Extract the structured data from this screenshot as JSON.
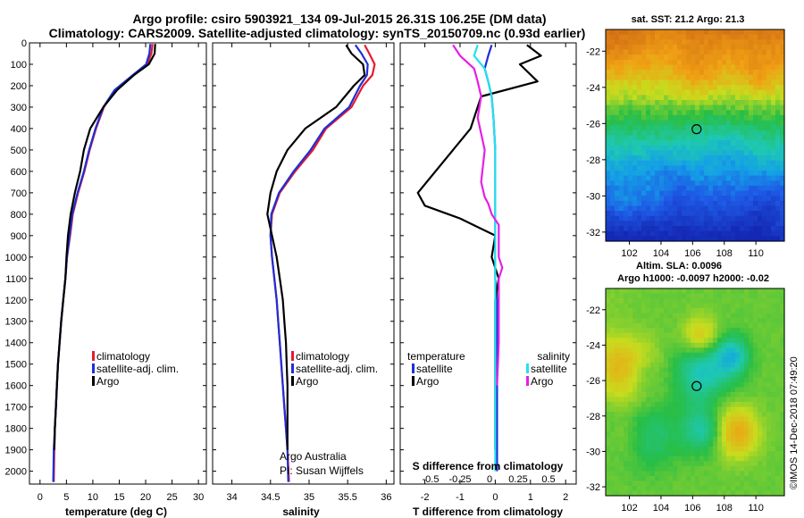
{
  "header": {
    "line1": "Argo profile: csiro 5903921_134 09-Jul-2015 26.31S 106.25E (DM data)",
    "line2": "Climatology: CARS2009. Satellite-adjusted climatology: synTS_20150709.nc (0.93d earlier)"
  },
  "colors": {
    "climatology": "#e8192c",
    "satellite": "#1f2fd6",
    "argo": "#000000",
    "sat_s": "#22e0f0",
    "argo_s": "#e61ee6"
  },
  "chart_data": [
    {
      "type": "line",
      "id": "temperature",
      "xlabel": "temperature (deg C)",
      "ylabel": "",
      "xlim": [
        -2,
        31.5
      ],
      "ylim": [
        2060,
        0
      ],
      "xticks": [
        0,
        5,
        10,
        15,
        20,
        25,
        30
      ],
      "yticks": [
        0,
        100,
        200,
        300,
        400,
        500,
        600,
        700,
        800,
        900,
        1000,
        1100,
        1200,
        1300,
        1400,
        1500,
        1600,
        1700,
        1800,
        1900,
        2000
      ],
      "legend": [
        "climatology",
        "satellite-adj. clim.",
        "Argo"
      ],
      "series": [
        {
          "name": "climatology",
          "color": "#e8192c",
          "x": [
            21.3,
            21.1,
            20.3,
            17.8,
            14.2,
            12.1,
            10.6,
            9.4,
            8.4,
            7.2,
            6.2,
            5.7,
            5.1,
            4.8,
            4.4,
            4.0,
            3.7,
            3.4,
            3.2,
            3.0,
            2.8,
            2.7,
            2.6
          ],
          "y": [
            5,
            50,
            100,
            150,
            220,
            300,
            400,
            500,
            600,
            700,
            800,
            900,
            1000,
            1100,
            1200,
            1300,
            1400,
            1500,
            1600,
            1700,
            1800,
            1900,
            2050
          ]
        },
        {
          "name": "satellite-adj. clim.",
          "color": "#1f2fd6",
          "x": [
            20.9,
            20.7,
            20.1,
            17.6,
            14.1,
            12.0,
            10.5,
            9.3,
            8.3,
            7.1,
            6.1,
            5.6,
            5.1,
            4.8,
            4.4,
            4.0,
            3.7,
            3.4,
            3.2,
            3.0,
            2.8,
            2.6,
            2.5
          ],
          "y": [
            5,
            50,
            100,
            150,
            220,
            300,
            400,
            500,
            600,
            700,
            800,
            900,
            1000,
            1100,
            1200,
            1300,
            1400,
            1500,
            1600,
            1700,
            1800,
            1900,
            2050
          ]
        },
        {
          "name": "Argo",
          "color": "#000000",
          "x": [
            21.8,
            21.7,
            20.6,
            17.8,
            14.6,
            12.0,
            9.5,
            8.3,
            7.6,
            6.6,
            5.8,
            5.3,
            5.0,
            4.8,
            4.4,
            4.0,
            3.7,
            3.4,
            3.2,
            3.0,
            2.8,
            2.7
          ],
          "y": [
            5,
            50,
            100,
            150,
            220,
            300,
            400,
            500,
            600,
            700,
            800,
            900,
            1000,
            1100,
            1200,
            1300,
            1400,
            1500,
            1600,
            1700,
            1800,
            1900
          ]
        }
      ]
    },
    {
      "type": "line",
      "id": "salinity",
      "xlabel": "salinity",
      "ylabel": "",
      "xlim": [
        33.75,
        36.1
      ],
      "ylim": [
        2060,
        0
      ],
      "xticks": [
        34,
        34.5,
        35,
        35.5,
        36
      ],
      "legend": [
        "climatology",
        "satellite-adj. clim.",
        "Argo"
      ],
      "series": [
        {
          "name": "climatology",
          "color": "#e8192c",
          "x": [
            35.72,
            35.78,
            35.85,
            35.82,
            35.7,
            35.55,
            35.22,
            35.05,
            34.82,
            34.62,
            34.52,
            34.5,
            34.52,
            34.55,
            34.58,
            34.6,
            34.62,
            34.64,
            34.66,
            34.68,
            34.7,
            34.72,
            34.74
          ],
          "y": [
            10,
            50,
            100,
            150,
            200,
            300,
            400,
            500,
            600,
            700,
            800,
            900,
            1000,
            1100,
            1200,
            1300,
            1400,
            1500,
            1600,
            1700,
            1800,
            1900,
            2050
          ]
        },
        {
          "name": "satellite-adj. clim.",
          "color": "#1f2fd6",
          "x": [
            35.6,
            35.68,
            35.76,
            35.75,
            35.66,
            35.52,
            35.2,
            35.02,
            34.8,
            34.61,
            34.51,
            34.5,
            34.52,
            34.55,
            34.58,
            34.6,
            34.62,
            34.64,
            34.66,
            34.68,
            34.7,
            34.72,
            34.73
          ],
          "y": [
            10,
            50,
            100,
            150,
            200,
            300,
            400,
            500,
            600,
            700,
            800,
            900,
            1000,
            1100,
            1200,
            1300,
            1400,
            1500,
            1600,
            1700,
            1800,
            1900,
            2050
          ]
        },
        {
          "name": "Argo",
          "color": "#000000",
          "x": [
            35.48,
            35.55,
            35.7,
            35.72,
            35.58,
            35.35,
            34.95,
            34.72,
            34.58,
            34.5,
            34.46,
            34.52,
            34.58,
            34.62,
            34.66,
            34.68,
            34.7,
            34.71,
            34.72,
            34.72,
            34.72,
            34.72
          ],
          "y": [
            10,
            50,
            100,
            150,
            200,
            300,
            400,
            500,
            600,
            700,
            800,
            900,
            1000,
            1100,
            1200,
            1300,
            1400,
            1500,
            1600,
            1700,
            1800,
            1900
          ]
        }
      ],
      "annotation": [
        "Argo Australia",
        "PI: Susan Wijffels"
      ]
    },
    {
      "type": "line",
      "id": "difference",
      "xlabel": "T difference from climatology",
      "xlabel2": "S difference from climatology",
      "xlim": [
        -2.7,
        2.3
      ],
      "ylim": [
        2060,
        0
      ],
      "xticks": [
        -2,
        -1,
        0,
        1,
        2
      ],
      "xticks2": [
        "-0.5",
        "-0.25",
        "0",
        "0.25",
        "0.5"
      ],
      "legend_left_title": "temperature",
      "legend_right_title": "salinity",
      "legend": [
        "satellite",
        "Argo",
        "satellite",
        "Argo"
      ],
      "series": [
        {
          "name": "temperature satellite",
          "color": "#1f2fd6",
          "x": [
            -0.1,
            -0.2,
            -0.3,
            -0.2,
            -0.1,
            -0.05,
            0,
            0,
            0,
            0,
            0,
            0,
            0.05,
            0.05,
            0.05,
            0.05,
            0.05,
            0.05,
            0.05,
            0.05,
            0.05
          ],
          "y": [
            10,
            60,
            120,
            180,
            250,
            350,
            500,
            650,
            800,
            900,
            1000,
            1100,
            1200,
            1300,
            1400,
            1500,
            1600,
            1700,
            1800,
            1900,
            2000
          ]
        },
        {
          "name": "temperature Argo",
          "color": "#000000",
          "x": [
            0.9,
            1.3,
            0.7,
            1.2,
            -0.4,
            -0.7,
            -2.2,
            -2.0,
            -1.0,
            0,
            -0.1,
            0.1,
            0,
            0,
            0,
            0,
            0,
            0,
            0,
            0
          ],
          "y": [
            10,
            60,
            100,
            180,
            250,
            400,
            700,
            760,
            820,
            900,
            1000,
            1100,
            1200,
            1300,
            1400,
            1500,
            1600,
            1700,
            1800,
            1900
          ]
        },
        {
          "name": "salinity satellite",
          "color": "#22e0f0",
          "x": [
            -0.5,
            -0.6,
            -0.3,
            -0.2,
            -0.1,
            -0.05,
            0,
            0,
            0,
            0,
            0,
            0,
            0,
            0,
            0,
            0,
            0,
            0,
            0,
            0,
            0
          ],
          "y": [
            10,
            60,
            120,
            180,
            250,
            350,
            500,
            650,
            800,
            900,
            1000,
            1100,
            1200,
            1300,
            1400,
            1500,
            1600,
            1700,
            1800,
            1900,
            2000
          ]
        },
        {
          "name": "salinity Argo",
          "color": "#e61ee6",
          "x": [
            -1.2,
            -1.0,
            -0.6,
            -0.5,
            -0.4,
            -0.5,
            -0.3,
            -0.4,
            -0.3,
            -0.2,
            -0.1,
            0.1,
            0.1,
            0.1,
            0.2,
            0.1,
            0.1,
            0.1,
            0.1,
            0.05
          ],
          "y": [
            10,
            60,
            120,
            180,
            250,
            350,
            500,
            650,
            720,
            750,
            800,
            850,
            900,
            1000,
            1050,
            1100,
            1150,
            1200,
            1400,
            1600
          ]
        }
      ]
    },
    {
      "type": "heatmap",
      "id": "sst_map",
      "title": "sat. SST: 21.2 Argo: 21.3",
      "xticks": [
        102,
        104,
        106,
        108,
        110
      ],
      "yticks": [
        -22,
        -24,
        -26,
        -28,
        -30,
        -32
      ],
      "marker": [
        106.25,
        -26.31
      ]
    },
    {
      "type": "heatmap",
      "id": "sla_map",
      "title": "Altim. SLA: 0.0096",
      "subtitle": "Argo h1000: -0.0097 h2000: -0.02",
      "xticks": [
        102,
        104,
        106,
        108,
        110
      ],
      "yticks": [
        -22,
        -24,
        -26,
        -28,
        -30,
        -32
      ],
      "marker": [
        106.25,
        -26.31
      ]
    }
  ],
  "footer": {
    "credit": "©IMOS 14-Dec-2018 07:49:20"
  }
}
